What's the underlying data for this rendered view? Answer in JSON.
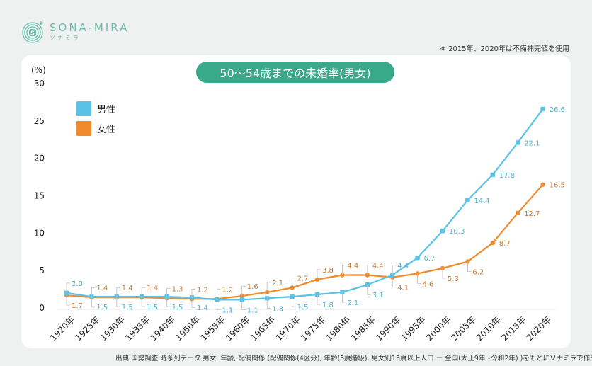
{
  "brand": {
    "name": "SONA-MIRA",
    "kana": "ソナミラ",
    "color": "#6dbfae"
  },
  "note": "※ 2015年、2020年は不備補完値を使用",
  "footer": "出典:国勢調査 時系列データ 男女, 年齢, 配偶関係 (配偶関係(4区分), 年齢(5歳階級), 男女別15歳以上人口 ー 全国(大正9年~令和2年) )をもとにソナミラで作成",
  "colors": {
    "male": "#5bc2e7",
    "female": "#f08a2c",
    "title_bg": "#3aa88a"
  },
  "chart_data": {
    "type": "line",
    "title": "50～54歳までの未婚率(男女)",
    "ylabel": "(%)",
    "xlabel": "",
    "ylim": [
      0,
      30
    ],
    "yticks": [
      "0",
      "5",
      "10",
      "15",
      "20",
      "25",
      "30"
    ],
    "grid": false,
    "legend_position": "top-left",
    "categories": [
      "1920年",
      "1925年",
      "1930年",
      "1935年",
      "1940年",
      "1950年",
      "1955年",
      "1960年",
      "1965年",
      "1970年",
      "1975年",
      "1980年",
      "1985年",
      "1990年",
      "1995年",
      "2000年",
      "2005年",
      "2010年",
      "2015年",
      "2020年"
    ],
    "series": [
      {
        "name": "男性",
        "color": "#5bc2e7",
        "values": [
          2.0,
          1.5,
          1.5,
          1.5,
          1.5,
          1.4,
          1.1,
          1.1,
          1.3,
          1.5,
          1.8,
          2.1,
          3.1,
          4.4,
          6.7,
          10.3,
          14.4,
          17.8,
          22.1,
          26.6
        ]
      },
      {
        "name": "女性",
        "color": "#f08a2c",
        "values": [
          1.7,
          1.4,
          1.4,
          1.4,
          1.3,
          1.2,
          1.2,
          1.6,
          2.1,
          2.7,
          3.8,
          4.4,
          4.4,
          4.1,
          4.6,
          5.3,
          6.2,
          8.7,
          12.7,
          16.5
        ]
      }
    ]
  }
}
